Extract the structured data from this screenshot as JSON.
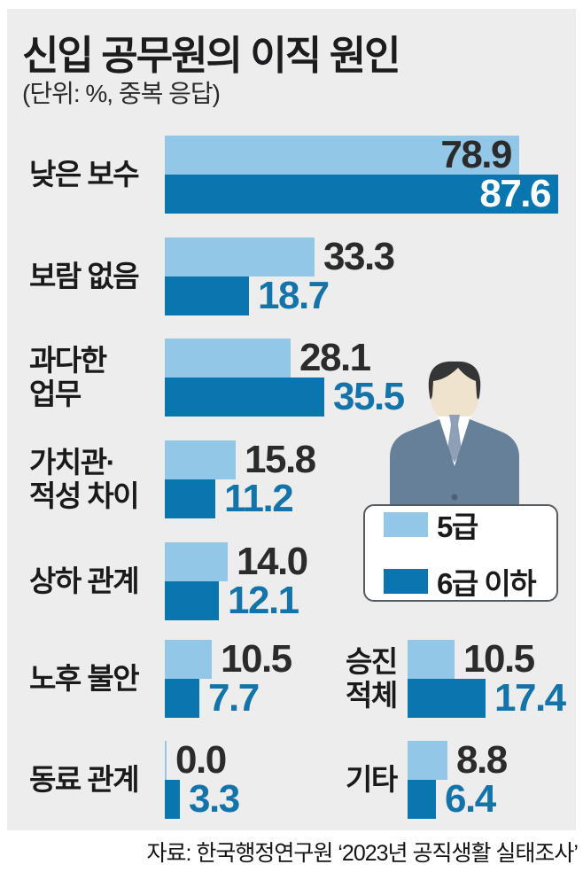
{
  "title": "신입 공무원의 이직 원인",
  "subtitle": "(단위: %, 중복 응답)",
  "source": "자료: 한국행정연구원 ‘2023년 공직생활 실태조사’",
  "legend": {
    "items": [
      {
        "label": "5급",
        "color": "#92c7e8"
      },
      {
        "label": "6급 이하",
        "color": "#0a76af"
      }
    ]
  },
  "person_icon": "male-office-worker-illustration",
  "colors": {
    "panel_bg": "#ededed",
    "bar_light": "#92c7e8",
    "bar_dark": "#0a76af",
    "value_text_dark": "#2b2b2b",
    "value_text_blue": "#1474aa",
    "value_text_white": "#ffffff",
    "suit": "#66809a",
    "hair": "#333537",
    "skin": "#f0e3ce",
    "tie": "#8fa0b6"
  },
  "chart_data": {
    "type": "bar",
    "orientation": "horizontal",
    "title": "신입 공무원의 이직 원인",
    "unit": "%",
    "note": "중복 응답",
    "legend_position": "middle-right",
    "categories": [
      "낮은 보수",
      "보람 없음",
      "과다한 업무",
      "가치관·적성 차이",
      "상하 관계",
      "노후 불안",
      "동료 관계",
      "승진 적체",
      "기타"
    ],
    "category_label_lines": [
      [
        "낮은 보수"
      ],
      [
        "보람 없음"
      ],
      [
        "과다한",
        "업무"
      ],
      [
        "가치관·",
        "적성 차이"
      ],
      [
        "상하 관계"
      ],
      [
        "노후 불안"
      ],
      [
        "동료 관계"
      ],
      [
        "승진",
        "적체"
      ],
      [
        "기타"
      ]
    ],
    "series": [
      {
        "name": "5급",
        "values": [
          78.9,
          33.3,
          28.1,
          15.8,
          14.0,
          10.5,
          0.0,
          10.5,
          8.8
        ]
      },
      {
        "name": "6급 이하",
        "values": [
          87.6,
          18.7,
          35.5,
          11.2,
          12.1,
          7.7,
          3.3,
          17.4,
          6.4
        ]
      }
    ],
    "value_labels": [
      [
        "78.9",
        "33.3",
        "28.1",
        "15.8",
        "14.0",
        "10.5",
        "0.0",
        "10.5",
        "8.8"
      ],
      [
        "87.6",
        "18.7",
        "35.5",
        "11.2",
        "12.1",
        "7.7",
        "3.3",
        "17.4",
        "6.4"
      ]
    ],
    "xlim": [
      0,
      100
    ]
  }
}
